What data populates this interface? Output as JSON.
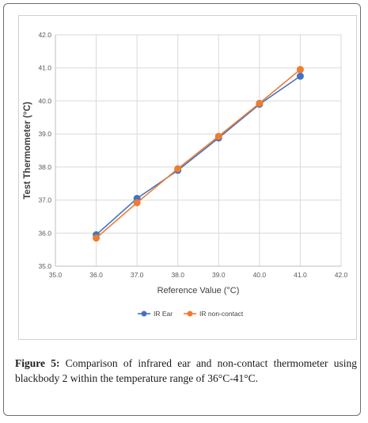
{
  "chart_data": {
    "type": "line",
    "xlabel": "Reference Value (°C)",
    "ylabel": "Test Thermometer (°C)",
    "xlim": [
      35.0,
      42.0
    ],
    "ylim": [
      35.0,
      42.0
    ],
    "x_ticks": [
      "35.0",
      "36.0",
      "37.0",
      "38.0",
      "39.0",
      "40.0",
      "41.0",
      "42.0"
    ],
    "y_ticks": [
      "35.0",
      "36.0",
      "37.0",
      "38.0",
      "39.0",
      "40.0",
      "41.0",
      "42.0"
    ],
    "grid": true,
    "legend_position": "bottom",
    "x": [
      36.0,
      37.0,
      38.0,
      39.0,
      40.0,
      41.0
    ],
    "series": [
      {
        "name": "IR Ear",
        "values": [
          35.95,
          37.05,
          37.9,
          38.88,
          39.9,
          40.75
        ],
        "color": "#4472C4"
      },
      {
        "name": "IR non-contact",
        "values": [
          35.85,
          36.92,
          37.95,
          38.93,
          39.93,
          40.95
        ],
        "color": "#ED7D31"
      }
    ]
  },
  "caption": {
    "label": "Figure 5:",
    "text": "Comparison of infrared ear and non-contact thermometer using blackbody 2 within the temperature range of 36°C-41°C."
  }
}
